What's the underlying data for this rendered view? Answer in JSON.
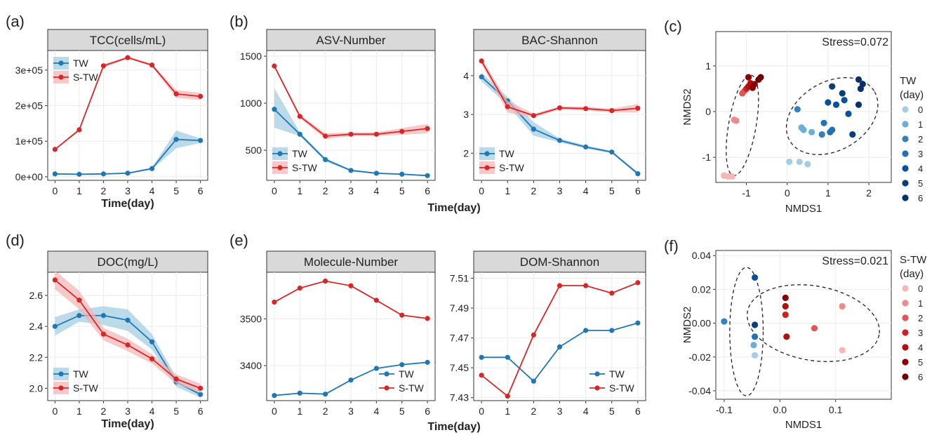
{
  "panel_labels": [
    "(a)",
    "(b)",
    "(c)",
    "(d)",
    "(e)",
    "(f)"
  ],
  "colors": {
    "tw": "#1f77b4",
    "stw": "#d62728",
    "tw_band": "#9ecae1",
    "stw_band": "#f4b2b2",
    "strip": "#d9d9d9",
    "grid": "#ebebeb",
    "tw_days": [
      "#a6cee3",
      "#6baed6",
      "#3182bd",
      "#2171b5",
      "#08519c",
      "#083e7a",
      "#08306b"
    ],
    "stw_days": [
      "#f7b6b6",
      "#ef8a8a",
      "#e05555",
      "#cc2222",
      "#b01010",
      "#8b0000",
      "#6e0000"
    ]
  },
  "chart_data": [
    {
      "id": "a",
      "type": "line",
      "strip_title": "TCC(cells/mL)",
      "xlabel": "Time(day)",
      "ylabel": "",
      "x": [
        0,
        1,
        2,
        3,
        4,
        5,
        6
      ],
      "xlim": [
        -0.3,
        6.3
      ],
      "ylim": [
        -10000,
        355000
      ],
      "yticks": [
        0,
        100000,
        200000,
        300000
      ],
      "ytick_labels": [
        "0e+00",
        "1e+05",
        "2e+05",
        "3e+05"
      ],
      "legend_position": "top-left",
      "series": [
        {
          "name": "TW",
          "color": "tw",
          "values": [
            8000,
            7000,
            8000,
            10000,
            23000,
            105000,
            102000
          ],
          "band_low": [
            6000,
            5000,
            6000,
            8000,
            20000,
            80000,
            95000
          ],
          "band_high": [
            10000,
            9000,
            10000,
            12000,
            26000,
            130000,
            108000
          ]
        },
        {
          "name": "S-TW",
          "color": "stw",
          "values": [
            77000,
            132000,
            312000,
            335000,
            314000,
            233000,
            226000
          ],
          "band_low": [
            75000,
            129000,
            307000,
            332000,
            310000,
            222000,
            216000
          ],
          "band_high": [
            79000,
            135000,
            317000,
            338000,
            318000,
            244000,
            236000
          ]
        }
      ]
    },
    {
      "id": "b1",
      "type": "line",
      "strip_title": "ASV-Number",
      "xlabel": "",
      "ylabel": "",
      "x": [
        0,
        1,
        2,
        3,
        4,
        5,
        6
      ],
      "xlim": [
        -0.3,
        6.3
      ],
      "ylim": [
        180,
        1560
      ],
      "yticks": [
        500,
        1000,
        1500
      ],
      "ytick_labels": [
        "500",
        "1000",
        "1500"
      ],
      "legend_position": "bottom-left",
      "series": [
        {
          "name": "TW",
          "color": "tw",
          "values": [
            935,
            670,
            400,
            285,
            255,
            245,
            230
          ],
          "band_low": [
            740,
            650,
            380,
            275,
            248,
            238,
            222
          ],
          "band_high": [
            1160,
            690,
            420,
            295,
            262,
            252,
            238
          ]
        },
        {
          "name": "S-TW",
          "color": "stw",
          "values": [
            1395,
            860,
            650,
            670,
            670,
            700,
            730
          ],
          "band_low": [
            1380,
            840,
            620,
            650,
            650,
            665,
            680
          ],
          "band_high": [
            1410,
            880,
            680,
            690,
            690,
            735,
            780
          ]
        }
      ]
    },
    {
      "id": "b2",
      "type": "line",
      "strip_title": "BAC-Shannon",
      "xlabel": "",
      "ylabel": "",
      "x": [
        0,
        1,
        2,
        3,
        4,
        5,
        6
      ],
      "xlim": [
        -0.3,
        6.3
      ],
      "ylim": [
        1.3,
        4.65
      ],
      "yticks": [
        2,
        3,
        4
      ],
      "ytick_labels": [
        "2",
        "3",
        "4"
      ],
      "legend_position": "bottom-left",
      "series": [
        {
          "name": "TW",
          "color": "tw",
          "values": [
            3.97,
            3.35,
            2.62,
            2.33,
            2.16,
            2.03,
            1.47
          ],
          "band_low": [
            3.85,
            3.25,
            2.45,
            2.28,
            2.12,
            2.0,
            1.43
          ],
          "band_high": [
            4.08,
            3.45,
            2.8,
            2.38,
            2.2,
            2.06,
            1.51
          ]
        },
        {
          "name": "S-TW",
          "color": "stw",
          "values": [
            4.38,
            3.2,
            2.97,
            3.17,
            3.15,
            3.1,
            3.16
          ],
          "band_low": [
            4.3,
            3.05,
            2.92,
            3.13,
            3.1,
            3.05,
            3.05
          ],
          "band_high": [
            4.46,
            3.35,
            3.02,
            3.21,
            3.2,
            3.15,
            3.27
          ]
        }
      ]
    },
    {
      "id": "d",
      "type": "line",
      "strip_title": "DOC(mg/L)",
      "xlabel": "Time(day)",
      "ylabel": "",
      "x": [
        0,
        1,
        2,
        3,
        4,
        5,
        6
      ],
      "xlim": [
        -0.3,
        6.3
      ],
      "ylim": [
        1.92,
        2.75
      ],
      "yticks": [
        2.0,
        2.2,
        2.4,
        2.6
      ],
      "ytick_labels": [
        "2.0",
        "2.2",
        "2.4",
        "2.6"
      ],
      "legend_position": "bottom-left",
      "series": [
        {
          "name": "TW",
          "color": "tw",
          "values": [
            2.4,
            2.47,
            2.47,
            2.44,
            2.3,
            2.04,
            1.96
          ],
          "band_low": [
            2.34,
            2.43,
            2.41,
            2.37,
            2.25,
            2.01,
            1.94
          ],
          "band_high": [
            2.46,
            2.51,
            2.53,
            2.51,
            2.35,
            2.07,
            1.98
          ]
        },
        {
          "name": "S-TW",
          "color": "stw",
          "values": [
            2.7,
            2.57,
            2.35,
            2.28,
            2.19,
            2.06,
            2.0
          ],
          "band_low": [
            2.64,
            2.51,
            2.31,
            2.24,
            2.16,
            2.03,
            1.97
          ],
          "band_high": [
            2.76,
            2.63,
            2.39,
            2.32,
            2.22,
            2.09,
            2.03
          ]
        }
      ]
    },
    {
      "id": "e1",
      "type": "line",
      "strip_title": "Molecule-Number",
      "xlabel": "",
      "ylabel": "",
      "x": [
        0,
        1,
        2,
        3,
        4,
        5,
        6
      ],
      "xlim": [
        -0.3,
        6.3
      ],
      "ylim": [
        3325,
        3600
      ],
      "yticks": [
        3400,
        3500
      ],
      "ytick_labels": [
        "3400",
        "3500"
      ],
      "legend_position": "bottom-right",
      "series": [
        {
          "name": "TW",
          "color": "tw",
          "values": [
            3336,
            3341,
            3339,
            3369,
            3394,
            3402,
            3407
          ]
        },
        {
          "name": "S-TW",
          "color": "stw",
          "values": [
            3536,
            3566,
            3581,
            3571,
            3540,
            3508,
            3501
          ]
        }
      ]
    },
    {
      "id": "e2",
      "type": "line",
      "strip_title": "DOM-Shannon",
      "xlabel": "",
      "ylabel": "",
      "x": [
        0,
        1,
        2,
        3,
        4,
        5,
        6
      ],
      "xlim": [
        -0.3,
        6.3
      ],
      "ylim": [
        7.428,
        7.514
      ],
      "yticks": [
        7.43,
        7.45,
        7.47,
        7.49,
        7.51
      ],
      "ytick_labels": [
        "7.43",
        "7.45",
        "7.47",
        "7.49",
        "7.51"
      ],
      "legend_position": "bottom-right",
      "series": [
        {
          "name": "TW",
          "color": "tw",
          "values": [
            7.457,
            7.457,
            7.441,
            7.464,
            7.475,
            7.475,
            7.48
          ]
        },
        {
          "name": "S-TW",
          "color": "stw",
          "values": [
            7.445,
            7.431,
            7.472,
            7.505,
            7.505,
            7.5,
            7.507
          ]
        }
      ]
    },
    {
      "id": "c",
      "type": "scatter",
      "annotation": "Stress=0.072",
      "xlabel": "NMDS1",
      "ylabel": "NMDS2",
      "xlim": [
        -1.75,
        2.55
      ],
      "ylim": [
        -1.55,
        1.75
      ],
      "xticks": [
        -1,
        0,
        1,
        2
      ],
      "xtick_labels": [
        "-1",
        "0",
        "1",
        "2"
      ],
      "yticks": [
        -1,
        0,
        1
      ],
      "ytick_labels": [
        "-1",
        "0",
        "1"
      ],
      "legend_title": "TW\n(day)",
      "legend_palette": "tw_days",
      "legend_entries": [
        "0",
        "1",
        "2",
        "3",
        "4",
        "5",
        "6"
      ],
      "ellipses": [
        {
          "cx": -1.1,
          "cy": -0.3,
          "rx": 1.25,
          "ry": 0.3,
          "angle_deg": 80
        },
        {
          "cx": 1.1,
          "cy": -0.1,
          "rx": 1.2,
          "ry": 0.75,
          "angle_deg": 30
        }
      ],
      "points": [
        {
          "x": -1.55,
          "y": -1.4,
          "group": "stw",
          "day": 0
        },
        {
          "x": -1.45,
          "y": -1.42,
          "group": "stw",
          "day": 0
        },
        {
          "x": -1.35,
          "y": -1.42,
          "group": "stw",
          "day": 0
        },
        {
          "x": -1.3,
          "y": -0.18,
          "group": "stw",
          "day": 1
        },
        {
          "x": -1.25,
          "y": -0.2,
          "group": "stw",
          "day": 1
        },
        {
          "x": -1.1,
          "y": 0.4,
          "group": "stw",
          "day": 2
        },
        {
          "x": -1.05,
          "y": 0.45,
          "group": "stw",
          "day": 2
        },
        {
          "x": -1.0,
          "y": 0.5,
          "group": "stw",
          "day": 3
        },
        {
          "x": -0.95,
          "y": 0.55,
          "group": "stw",
          "day": 4
        },
        {
          "x": -0.9,
          "y": 0.62,
          "group": "stw",
          "day": 4
        },
        {
          "x": -0.85,
          "y": 0.52,
          "group": "stw",
          "day": 5
        },
        {
          "x": -0.8,
          "y": 0.6,
          "group": "stw",
          "day": 5
        },
        {
          "x": -0.7,
          "y": 0.7,
          "group": "stw",
          "day": 6
        },
        {
          "x": -0.65,
          "y": 0.75,
          "group": "stw",
          "day": 6
        },
        {
          "x": -0.95,
          "y": 0.75,
          "group": "stw",
          "day": 5
        },
        {
          "x": 0.05,
          "y": -1.1,
          "group": "tw",
          "day": 0
        },
        {
          "x": 0.3,
          "y": -1.1,
          "group": "tw",
          "day": 0
        },
        {
          "x": 0.5,
          "y": -1.15,
          "group": "tw",
          "day": 0
        },
        {
          "x": 0.35,
          "y": -0.35,
          "group": "tw",
          "day": 1
        },
        {
          "x": 0.4,
          "y": -0.4,
          "group": "tw",
          "day": 1
        },
        {
          "x": 0.6,
          "y": -0.45,
          "group": "tw",
          "day": 1
        },
        {
          "x": 0.25,
          "y": 0.05,
          "group": "tw",
          "day": 2
        },
        {
          "x": 0.85,
          "y": -0.5,
          "group": "tw",
          "day": 2
        },
        {
          "x": 1.05,
          "y": -0.45,
          "group": "tw",
          "day": 3
        },
        {
          "x": 0.9,
          "y": -0.25,
          "group": "tw",
          "day": 3
        },
        {
          "x": 1.1,
          "y": -0.4,
          "group": "tw",
          "day": 3
        },
        {
          "x": 1.0,
          "y": 0.2,
          "group": "tw",
          "day": 4
        },
        {
          "x": 1.2,
          "y": 0.15,
          "group": "tw",
          "day": 4
        },
        {
          "x": 1.4,
          "y": 0.25,
          "group": "tw",
          "day": 4
        },
        {
          "x": 1.5,
          "y": -0.05,
          "group": "tw",
          "day": 4
        },
        {
          "x": 1.1,
          "y": 0.55,
          "group": "tw",
          "day": 5
        },
        {
          "x": 1.35,
          "y": 0.4,
          "group": "tw",
          "day": 5
        },
        {
          "x": 1.6,
          "y": -0.5,
          "group": "tw",
          "day": 5
        },
        {
          "x": 1.75,
          "y": 0.7,
          "group": "tw",
          "day": 6
        },
        {
          "x": 1.8,
          "y": 0.5,
          "group": "tw",
          "day": 6
        },
        {
          "x": 1.85,
          "y": 0.6,
          "group": "tw",
          "day": 6
        },
        {
          "x": 1.75,
          "y": 0.15,
          "group": "tw",
          "day": 6
        }
      ]
    },
    {
      "id": "f",
      "type": "scatter",
      "annotation": "Stress=0.021",
      "xlabel": "NMDS1",
      "ylabel": "NMDS2",
      "xlim": [
        -0.115,
        0.2
      ],
      "ylim": [
        -0.045,
        0.043
      ],
      "xticks": [
        -0.1,
        0.0,
        0.1
      ],
      "xtick_labels": [
        "-0.1",
        "0.0",
        "0.1"
      ],
      "yticks": [
        -0.04,
        -0.02,
        0.0,
        0.02,
        0.04
      ],
      "ytick_labels": [
        "-0.04",
        "-0.02",
        "0.00",
        "0.02",
        "0.04"
      ],
      "legend_title": "S-TW\n(day)",
      "legend_palette": "stw_days",
      "legend_entries": [
        "0",
        "1",
        "2",
        "3",
        "4",
        "5",
        "6"
      ],
      "ellipses": [
        {
          "cx": -0.06,
          "cy": -0.005,
          "rx": 0.03,
          "ry": 0.038,
          "angle_deg": 0
        },
        {
          "cx": 0.06,
          "cy": 0.0,
          "rx": 0.12,
          "ry": 0.022,
          "angle_deg": -10
        }
      ],
      "points": [
        {
          "x": -0.1,
          "y": 0.001,
          "group": "tw",
          "day": 2
        },
        {
          "x": -0.045,
          "y": 0.027,
          "group": "tw",
          "day": 4
        },
        {
          "x": -0.045,
          "y": -0.001,
          "group": "tw",
          "day": 5
        },
        {
          "x": -0.045,
          "y": -0.008,
          "group": "tw",
          "day": 3
        },
        {
          "x": -0.047,
          "y": -0.013,
          "group": "tw",
          "day": 1
        },
        {
          "x": -0.045,
          "y": -0.019,
          "group": "tw",
          "day": 0
        },
        {
          "x": 0.01,
          "y": 0.015,
          "group": "stw",
          "day": 5
        },
        {
          "x": 0.01,
          "y": 0.01,
          "group": "stw",
          "day": 4
        },
        {
          "x": 0.01,
          "y": 0.005,
          "group": "stw",
          "day": 3
        },
        {
          "x": 0.012,
          "y": -0.008,
          "group": "stw",
          "day": 4
        },
        {
          "x": 0.062,
          "y": -0.003,
          "group": "stw",
          "day": 2
        },
        {
          "x": 0.112,
          "y": 0.01,
          "group": "stw",
          "day": 1
        },
        {
          "x": 0.112,
          "y": -0.016,
          "group": "stw",
          "day": 0
        }
      ]
    }
  ]
}
